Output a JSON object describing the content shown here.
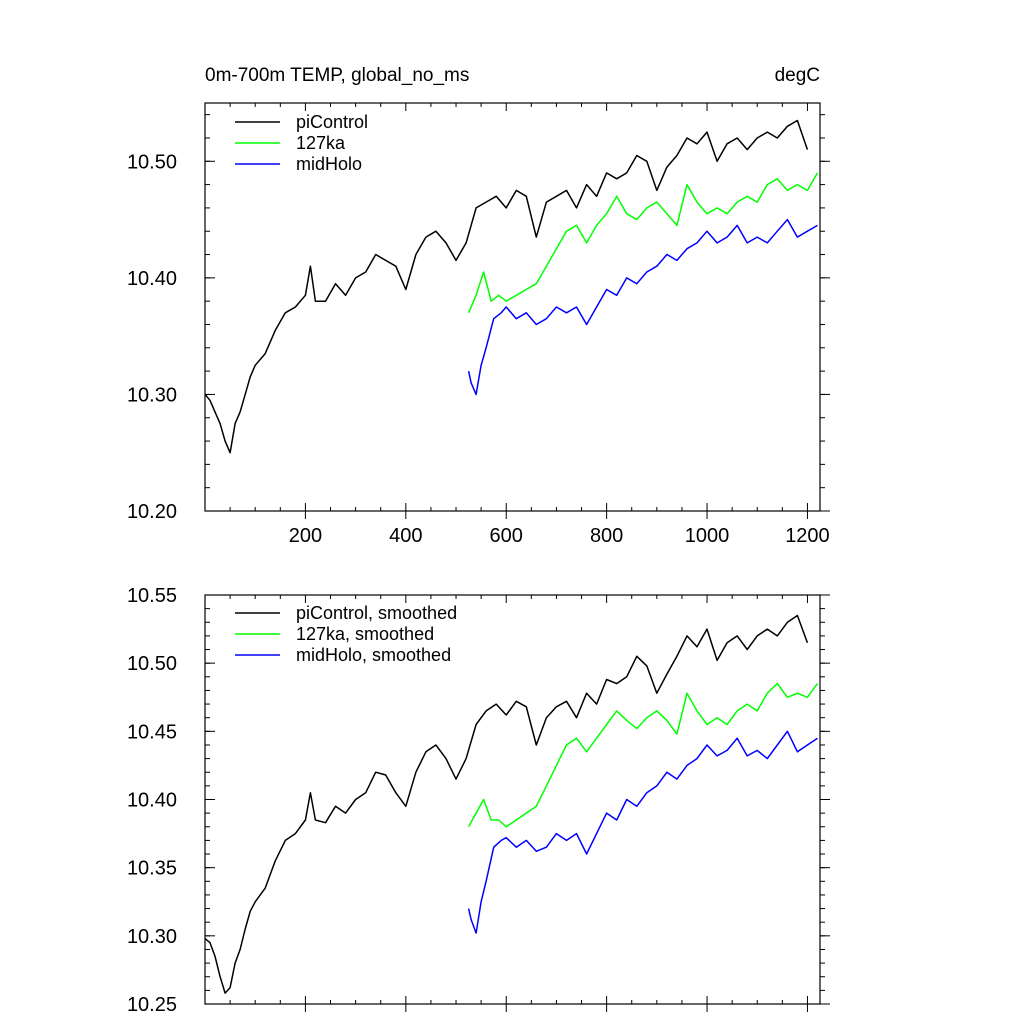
{
  "chart_data": [
    {
      "type": "line",
      "title": "0m-700m TEMP, global_no_ms",
      "units": "degC",
      "xlabel": "",
      "ylabel": "",
      "xlim": [
        0,
        1225
      ],
      "ylim": [
        10.2,
        10.55
      ],
      "xticks": [
        200,
        400,
        600,
        800,
        1000,
        1200
      ],
      "yticks": [
        10.2,
        10.3,
        10.4,
        10.5
      ],
      "ytick_labels": [
        "10.20",
        "10.30",
        "10.40",
        "10.50"
      ],
      "grid": false,
      "legend": "top-left",
      "series": [
        {
          "name": "piControl",
          "color": "#000000",
          "x": [
            0,
            10,
            20,
            30,
            40,
            50,
            60,
            70,
            80,
            90,
            100,
            120,
            140,
            160,
            180,
            200,
            210,
            220,
            240,
            260,
            280,
            300,
            320,
            340,
            360,
            380,
            400,
            420,
            440,
            460,
            480,
            500,
            520,
            540,
            560,
            580,
            600,
            620,
            640,
            660,
            680,
            700,
            720,
            740,
            760,
            780,
            800,
            820,
            840,
            860,
            880,
            900,
            920,
            940,
            960,
            980,
            1000,
            1020,
            1040,
            1060,
            1080,
            1100,
            1120,
            1140,
            1160,
            1180,
            1200
          ],
          "y": [
            10.3,
            10.295,
            10.285,
            10.275,
            10.26,
            10.25,
            10.275,
            10.285,
            10.3,
            10.315,
            10.325,
            10.335,
            10.355,
            10.37,
            10.375,
            10.385,
            10.41,
            10.38,
            10.38,
            10.395,
            10.385,
            10.4,
            10.405,
            10.42,
            10.415,
            10.41,
            10.39,
            10.42,
            10.435,
            10.44,
            10.43,
            10.415,
            10.43,
            10.46,
            10.465,
            10.47,
            10.46,
            10.475,
            10.47,
            10.435,
            10.465,
            10.47,
            10.475,
            10.46,
            10.48,
            10.47,
            10.49,
            10.485,
            10.49,
            10.505,
            10.5,
            10.475,
            10.495,
            10.505,
            10.52,
            10.515,
            10.525,
            10.5,
            10.515,
            10.52,
            10.51,
            10.52,
            10.525,
            10.52,
            10.53,
            10.535,
            10.51
          ]
        },
        {
          "name": "127ka",
          "color": "#00ff00",
          "x": [
            525,
            540,
            555,
            570,
            585,
            600,
            620,
            640,
            660,
            680,
            700,
            720,
            740,
            760,
            780,
            800,
            820,
            840,
            860,
            880,
            900,
            920,
            940,
            960,
            980,
            1000,
            1020,
            1040,
            1060,
            1080,
            1100,
            1120,
            1140,
            1160,
            1180,
            1200,
            1220
          ],
          "y": [
            10.37,
            10.385,
            10.405,
            10.38,
            10.385,
            10.38,
            10.385,
            10.39,
            10.395,
            10.41,
            10.425,
            10.44,
            10.445,
            10.43,
            10.445,
            10.455,
            10.47,
            10.455,
            10.45,
            10.46,
            10.465,
            10.455,
            10.445,
            10.48,
            10.465,
            10.455,
            10.46,
            10.455,
            10.465,
            10.47,
            10.465,
            10.48,
            10.485,
            10.475,
            10.48,
            10.475,
            10.49
          ]
        },
        {
          "name": "midHolo",
          "color": "#0000ff",
          "x": [
            525,
            530,
            540,
            550,
            560,
            575,
            590,
            600,
            620,
            640,
            660,
            680,
            700,
            720,
            740,
            760,
            780,
            800,
            820,
            840,
            860,
            880,
            900,
            920,
            940,
            960,
            980,
            1000,
            1020,
            1040,
            1060,
            1080,
            1100,
            1120,
            1140,
            1160,
            1180,
            1200,
            1220
          ],
          "y": [
            10.32,
            10.31,
            10.3,
            10.325,
            10.34,
            10.365,
            10.37,
            10.375,
            10.365,
            10.37,
            10.36,
            10.365,
            10.375,
            10.37,
            10.375,
            10.36,
            10.375,
            10.39,
            10.385,
            10.4,
            10.395,
            10.405,
            10.41,
            10.42,
            10.415,
            10.425,
            10.43,
            10.44,
            10.43,
            10.435,
            10.445,
            10.43,
            10.435,
            10.43,
            10.44,
            10.45,
            10.435,
            10.44,
            10.445
          ]
        }
      ]
    },
    {
      "type": "line",
      "title": "",
      "xlabel": "",
      "ylabel": "",
      "xlim": [
        0,
        1225
      ],
      "ylim": [
        10.25,
        10.55
      ],
      "xticks": [
        200,
        400,
        600,
        800,
        1000,
        1200
      ],
      "yticks": [
        10.25,
        10.3,
        10.35,
        10.4,
        10.45,
        10.5,
        10.55
      ],
      "ytick_labels": [
        "10.25",
        "10.30",
        "10.35",
        "10.40",
        "10.45",
        "10.50",
        "10.55"
      ],
      "grid": false,
      "legend": "top-left",
      "series": [
        {
          "name": "piControl, smoothed",
          "color": "#000000",
          "x": [
            0,
            10,
            20,
            30,
            40,
            50,
            60,
            70,
            80,
            90,
            100,
            120,
            140,
            160,
            180,
            200,
            210,
            220,
            240,
            260,
            280,
            300,
            320,
            340,
            360,
            380,
            400,
            420,
            440,
            460,
            480,
            500,
            520,
            540,
            560,
            580,
            600,
            620,
            640,
            660,
            680,
            700,
            720,
            740,
            760,
            780,
            800,
            820,
            840,
            860,
            880,
            900,
            920,
            940,
            960,
            980,
            1000,
            1020,
            1040,
            1060,
            1080,
            1100,
            1120,
            1140,
            1160,
            1180,
            1200
          ],
          "y": [
            10.298,
            10.295,
            10.285,
            10.27,
            10.258,
            10.262,
            10.28,
            10.29,
            10.305,
            10.318,
            10.325,
            10.335,
            10.355,
            10.37,
            10.375,
            10.385,
            10.405,
            10.385,
            10.383,
            10.395,
            10.39,
            10.4,
            10.405,
            10.42,
            10.418,
            10.405,
            10.395,
            10.42,
            10.435,
            10.44,
            10.43,
            10.415,
            10.43,
            10.455,
            10.465,
            10.47,
            10.462,
            10.472,
            10.468,
            10.44,
            10.46,
            10.468,
            10.472,
            10.46,
            10.478,
            10.47,
            10.488,
            10.485,
            10.49,
            10.505,
            10.498,
            10.478,
            10.492,
            10.505,
            10.52,
            10.512,
            10.525,
            10.502,
            10.515,
            10.52,
            10.51,
            10.52,
            10.525,
            10.52,
            10.53,
            10.535,
            10.515
          ]
        },
        {
          "name": "127ka, smoothed",
          "color": "#00ff00",
          "x": [
            525,
            540,
            555,
            570,
            585,
            600,
            620,
            640,
            660,
            680,
            700,
            720,
            740,
            760,
            780,
            800,
            820,
            840,
            860,
            880,
            900,
            920,
            940,
            960,
            980,
            1000,
            1020,
            1040,
            1060,
            1080,
            1100,
            1120,
            1140,
            1160,
            1180,
            1200,
            1220
          ],
          "y": [
            10.38,
            10.39,
            10.4,
            10.385,
            10.385,
            10.38,
            10.385,
            10.39,
            10.395,
            10.41,
            10.425,
            10.44,
            10.445,
            10.435,
            10.445,
            10.455,
            10.465,
            10.458,
            10.452,
            10.46,
            10.465,
            10.458,
            10.448,
            10.478,
            10.465,
            10.455,
            10.46,
            10.455,
            10.465,
            10.47,
            10.465,
            10.478,
            10.485,
            10.475,
            10.478,
            10.475,
            10.485
          ]
        },
        {
          "name": "midHolo, smoothed",
          "color": "#0000ff",
          "x": [
            525,
            530,
            540,
            550,
            560,
            575,
            590,
            600,
            620,
            640,
            660,
            680,
            700,
            720,
            740,
            760,
            780,
            800,
            820,
            840,
            860,
            880,
            900,
            920,
            940,
            960,
            980,
            1000,
            1020,
            1040,
            1060,
            1080,
            1100,
            1120,
            1140,
            1160,
            1180,
            1200,
            1220
          ],
          "y": [
            10.32,
            10.312,
            10.302,
            10.325,
            10.34,
            10.365,
            10.37,
            10.372,
            10.365,
            10.37,
            10.362,
            10.365,
            10.375,
            10.37,
            10.375,
            10.36,
            10.375,
            10.39,
            10.385,
            10.4,
            10.395,
            10.405,
            10.41,
            10.42,
            10.415,
            10.425,
            10.43,
            10.44,
            10.432,
            10.436,
            10.445,
            10.432,
            10.436,
            10.43,
            10.44,
            10.45,
            10.435,
            10.44,
            10.445
          ]
        }
      ]
    }
  ]
}
